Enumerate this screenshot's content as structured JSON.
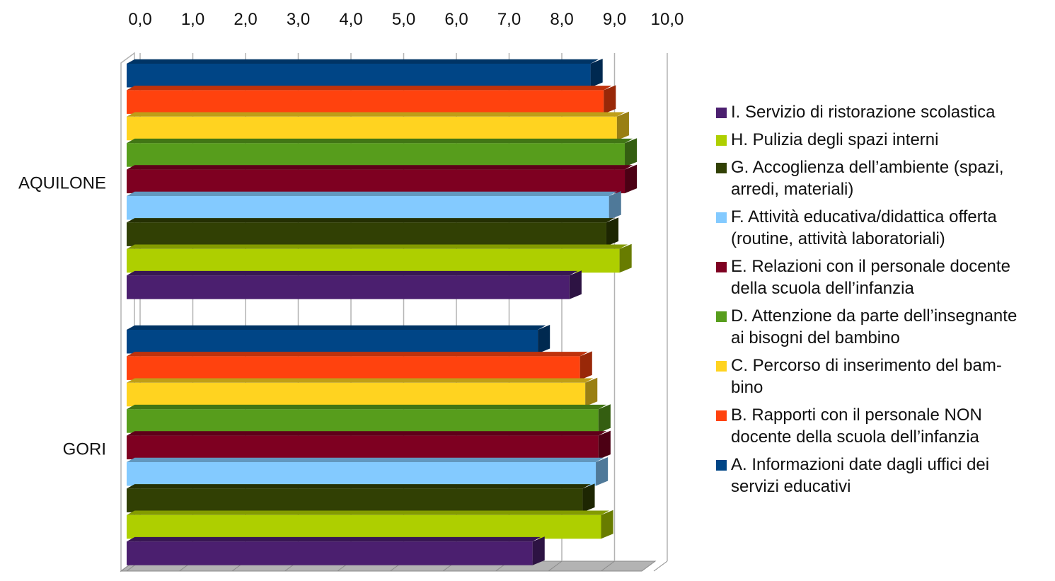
{
  "chart_data": {
    "type": "bar",
    "orientation": "horizontal",
    "style": "3d",
    "x_ticks": [
      "0,0",
      "1,0",
      "2,0",
      "3,0",
      "4,0",
      "5,0",
      "6,0",
      "7,0",
      "8,0",
      "9,0",
      "10,0"
    ],
    "xlim": [
      0,
      10
    ],
    "grid": true,
    "legend_position": "right",
    "categories": [
      "AQUILONE",
      "GORI"
    ],
    "series": [
      {
        "name": "A. Informazioni date dagli uffici dei servizi educativi",
        "color": "#004586",
        "values": [
          8.8,
          7.8
        ]
      },
      {
        "name": "B. Rapporti con il personale NON docente della scuola dell’infanzia",
        "color": "#ff420e",
        "values": [
          9.05,
          8.6
        ]
      },
      {
        "name": "C. Percorso di inserimento del bam-bino",
        "color": "#ffd320",
        "values": [
          9.3,
          8.7
        ]
      },
      {
        "name": "D. Attenzione da parte dell’insegnante ai bisogni del bambino",
        "color": "#579d1c",
        "values": [
          9.45,
          8.95
        ]
      },
      {
        "name": "E. Relazioni con il personale docente della scuola dell’infanzia",
        "color": "#7e0021",
        "values": [
          9.45,
          8.95
        ]
      },
      {
        "name": "F. Attività educativa/didattica offerta (routine, attività laboratoriali)",
        "color": "#83caff",
        "values": [
          9.15,
          8.9
        ]
      },
      {
        "name": "G. Accoglienza dell’ambiente (spazi, arredi, materiali)",
        "color": "#314004",
        "values": [
          9.1,
          8.65
        ]
      },
      {
        "name": "H. Pulizia degli spazi interni",
        "color": "#aecf00",
        "values": [
          9.35,
          9.0
        ]
      },
      {
        "name": "I. Servizio di ristorazione scolastica",
        "color": "#4b1f6f",
        "values": [
          8.4,
          7.7
        ]
      }
    ]
  },
  "legend": [
    {
      "lines": [
        "I. Servizio di ristorazione scolastica"
      ],
      "color": "#4b1f6f"
    },
    {
      "lines": [
        "H. Pulizia degli spazi interni"
      ],
      "color": "#aecf00"
    },
    {
      "lines": [
        "G. Accoglienza dell’ambiente (spazi,",
        "arredi, materiali)"
      ],
      "color": "#314004"
    },
    {
      "lines": [
        "F. Attività educativa/didattica offerta",
        "(routine, attività laboratoriali)"
      ],
      "color": "#83caff"
    },
    {
      "lines": [
        "E. Relazioni con il personale docente",
        "della scuola dell’infanzia"
      ],
      "color": "#7e0021"
    },
    {
      "lines": [
        "D. Attenzione da parte dell’insegnante",
        "ai bisogni del bambino"
      ],
      "color": "#579d1c"
    },
    {
      "lines": [
        "C. Percorso di inserimento del bam-",
        "bino"
      ],
      "color": "#ffd320"
    },
    {
      "lines": [
        "B. Rapporti con il personale NON",
        "docente della scuola dell’infanzia"
      ],
      "color": "#ff420e"
    },
    {
      "lines": [
        "A. Informazioni date dagli uffici dei",
        "servizi educativi"
      ],
      "color": "#004586"
    }
  ]
}
